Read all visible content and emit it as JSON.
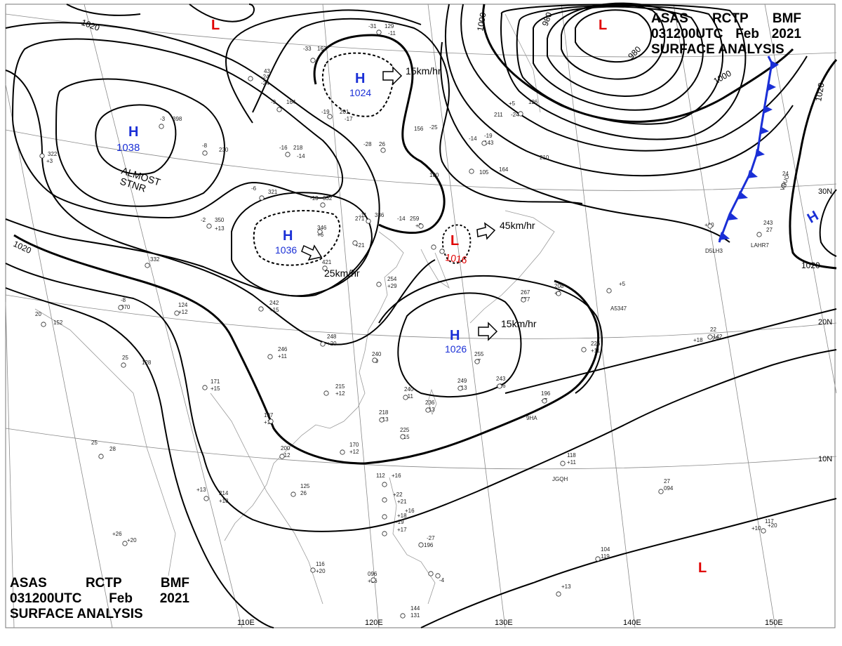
{
  "title_top": {
    "line1": [
      "ASAS",
      "RCTP",
      "BMF"
    ],
    "line2": [
      "031200UTC",
      "Feb",
      "2021"
    ],
    "line3": "SURFACE ANALYSIS"
  },
  "title_bottom": {
    "line1": [
      "ASAS",
      "RCTP",
      "BMF"
    ],
    "line2": [
      "031200UTC",
      "Feb",
      "2021"
    ],
    "line3": "SURFACE ANALYSIS"
  },
  "colors": {
    "high": "#1a2fd6",
    "low": "#e00000",
    "front": "#1a2fd6",
    "isobar": "#000000",
    "grid": "#8a8a8a",
    "coast": "#9a9a9a"
  },
  "pressure_centers": [
    {
      "id": "h1038",
      "type": "H",
      "letter": "H",
      "value": "1038",
      "note": [
        "ALMOST",
        "STNR"
      ]
    },
    {
      "id": "h1024",
      "type": "H",
      "letter": "H",
      "value": "1024"
    },
    {
      "id": "h1036",
      "type": "H",
      "letter": "H",
      "value": "1036"
    },
    {
      "id": "l1016",
      "type": "L",
      "letter": "L",
      "value": "1016"
    },
    {
      "id": "h1026",
      "type": "H",
      "letter": "H",
      "value": "1026"
    },
    {
      "id": "l-north",
      "type": "L",
      "letter": "L",
      "value": ""
    },
    {
      "id": "l-northeast",
      "type": "L",
      "letter": "L",
      "value": ""
    },
    {
      "id": "h-east",
      "type": "H",
      "letter": "H",
      "value": ""
    },
    {
      "id": "l-southeast",
      "type": "L",
      "letter": "L",
      "value": ""
    }
  ],
  "movements": [
    {
      "id": "mv-h1024",
      "text": "15km/hr"
    },
    {
      "id": "mv-h1036",
      "text": "25km/hr"
    },
    {
      "id": "mv-l1016",
      "text": "45km/hr"
    },
    {
      "id": "mv-h1026",
      "text": "15km/hr"
    }
  ],
  "isobar_labels": [
    "1020",
    "1000",
    "980",
    "1000",
    "980",
    "1020",
    "1020",
    "1020"
  ],
  "longitude_labels": [
    "110E",
    "120E",
    "130E",
    "140E",
    "150E"
  ],
  "latitude_labels": [
    "30N",
    "20N",
    "10N"
  ],
  "station_codes": [
    "D5LH3",
    "LAHR7",
    "A5347",
    "9HA",
    "JGQH",
    "VRUO"
  ],
  "station_values": [
    "-31",
    "129",
    "-11",
    "-33",
    "162",
    "-24",
    "43",
    "-24",
    "-9",
    "164",
    "-19",
    "201",
    "-17",
    "-28",
    "26",
    "-16",
    "218",
    "-14",
    "-8",
    "230",
    "-3",
    "398",
    "322",
    "+3",
    "-6",
    "321",
    "-13",
    "332",
    "-11",
    "336",
    "-14",
    "259",
    "+5",
    "-2",
    "350",
    "+13",
    "346",
    "+6",
    "271",
    "+21",
    "332",
    "421",
    "254",
    "+29",
    "242",
    "+15",
    "124",
    "+12",
    "-8",
    "070",
    "152",
    "20",
    "248",
    "+20",
    "246",
    "+11",
    "240",
    "+9",
    "215",
    "+12",
    "171",
    "+15",
    "128",
    "25",
    "197",
    "+11",
    "240",
    "+11",
    "218",
    "+13",
    "236",
    "+13",
    "249",
    "+13",
    "243",
    "+16",
    "255",
    "+7",
    "225",
    "+15",
    "200",
    "+12",
    "170",
    "+12",
    "125",
    "26",
    "28",
    "25",
    "+13",
    "214",
    "+18",
    "196",
    "+7",
    "208",
    "+9",
    "226",
    "+11",
    "267",
    "177",
    "+5",
    "22",
    "142",
    "+18",
    "118",
    "+11",
    "27",
    "094",
    "+10",
    "117",
    "+20",
    "104",
    "119",
    "+13",
    "116",
    "+20",
    "096",
    "+16",
    "144",
    "131",
    "+16",
    "+22",
    "+21",
    "+18",
    "+17",
    "-27",
    "196",
    "211",
    "-24",
    "126",
    "+5",
    "-19",
    "143",
    "105",
    "164",
    "210",
    "-25",
    "180",
    "156",
    "+10",
    "243",
    "27",
    "24",
    "29",
    "112",
    "+26",
    "+20",
    "+16",
    "-19",
    "-4",
    "-14"
  ]
}
